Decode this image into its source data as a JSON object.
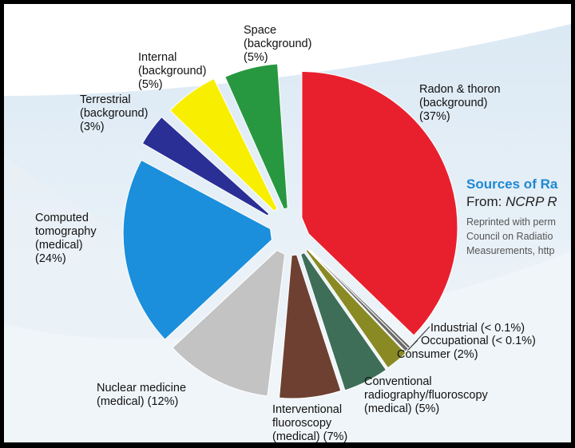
{
  "chart_data": {
    "type": "pie",
    "title": "",
    "slices": [
      {
        "name": "Radon & thoron (background)",
        "label": [
          "Radon & thoron",
          "(background)",
          "(37%)"
        ],
        "value": 37,
        "color": "#e8202e"
      },
      {
        "name": "Industrial",
        "label": [
          "Industrial (< 0.1%)"
        ],
        "value": 0.1,
        "color": "#6a6a6a"
      },
      {
        "name": "Occupational",
        "label": [
          "Occupational (< 0.1%)"
        ],
        "value": 0.1,
        "color": "#6a6a6a"
      },
      {
        "name": "Consumer",
        "label": [
          "Consumer (2%)"
        ],
        "value": 2,
        "color": "#8a8a25"
      },
      {
        "name": "Conventional radiography/fluoroscopy (medical)",
        "label": [
          "Conventional",
          "radiography/fluoroscopy",
          "(medical) (5%)"
        ],
        "value": 5,
        "color": "#3e6e57"
      },
      {
        "name": "Interventional fluoroscopy (medical)",
        "label": [
          "Interventional",
          "fluoroscopy",
          "(medical) (7%)"
        ],
        "value": 7,
        "color": "#6e4031"
      },
      {
        "name": "Nuclear medicine (medical)",
        "label": [
          "Nuclear medicine",
          "(medical) (12%)"
        ],
        "value": 12,
        "color": "#c3c3c3"
      },
      {
        "name": "Computed tomography (medical)",
        "label": [
          "Computed",
          "tomography",
          "(medical)",
          "(24%)"
        ],
        "value": 24,
        "color": "#1b8fdb"
      },
      {
        "name": "Terrestrial (background)",
        "label": [
          "Terrestrial",
          "(background)",
          "(3%)"
        ],
        "value": 3,
        "color": "#2a2f96"
      },
      {
        "name": "Internal (background)",
        "label": [
          "Internal",
          "(background)",
          "(5%)"
        ],
        "value": 5,
        "color": "#f8ee00"
      },
      {
        "name": "Space (background)",
        "label": [
          "Space",
          "(background)",
          "(5%)"
        ],
        "value": 5,
        "color": "#27983f"
      }
    ]
  },
  "source": {
    "title": "Sources of Ra",
    "from_prefix": "From: ",
    "from_italic": "NCRP R",
    "note_lines": [
      "Reprinted with perm",
      "Council on Radiatio",
      "Measurements, http"
    ]
  }
}
